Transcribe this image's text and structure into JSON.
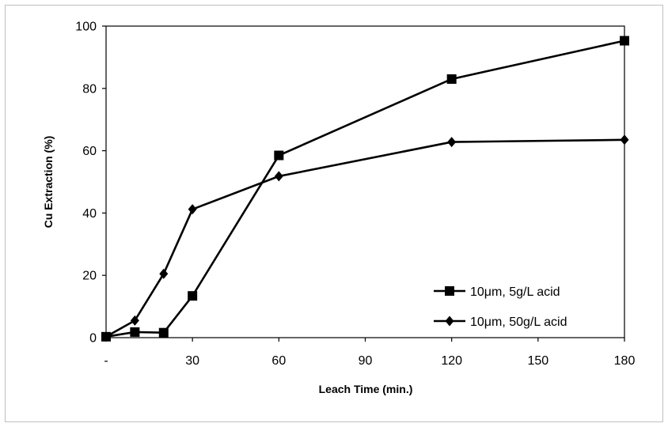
{
  "chart_data": {
    "type": "line",
    "title": "",
    "xlabel": "Leach Time (min.)",
    "ylabel": "Cu Extraction  (%)",
    "xlim": [
      0,
      180
    ],
    "ylim": [
      0,
      100
    ],
    "x_ticks": [
      0,
      30,
      60,
      90,
      120,
      150,
      180
    ],
    "x_tick_labels": [
      "-",
      "30",
      "60",
      "90",
      "120",
      "150",
      "180"
    ],
    "y_ticks": [
      0,
      20,
      40,
      60,
      80,
      100
    ],
    "y_tick_labels": [
      "0",
      "20",
      "40",
      "60",
      "80",
      "100"
    ],
    "grid": false,
    "legend_position": "bottom-right",
    "series": [
      {
        "name": "10μm, 5g/L acid",
        "marker": "square",
        "color": "#000000",
        "x": [
          0,
          10,
          20,
          30,
          60,
          120,
          180
        ],
        "y": [
          0.3,
          1.8,
          1.6,
          13.4,
          58.5,
          83.0,
          95.3
        ]
      },
      {
        "name": "10μm, 50g/L acid",
        "marker": "diamond",
        "color": "#000000",
        "x": [
          0,
          10,
          20,
          30,
          60,
          120,
          180
        ],
        "y": [
          0.3,
          5.5,
          20.5,
          41.2,
          51.8,
          62.8,
          63.5
        ]
      }
    ]
  }
}
